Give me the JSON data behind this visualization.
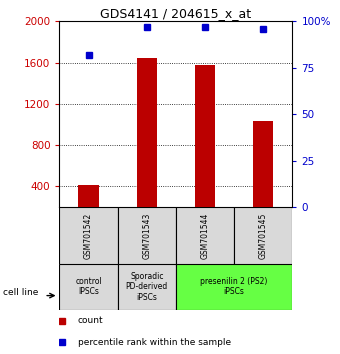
{
  "title": "GDS4141 / 204615_x_at",
  "samples": [
    "GSM701542",
    "GSM701543",
    "GSM701544",
    "GSM701545"
  ],
  "counts": [
    415,
    1645,
    1580,
    1030
  ],
  "percentiles": [
    82,
    97,
    97,
    96
  ],
  "ylim_left": [
    200,
    2000
  ],
  "ylim_right": [
    0,
    100
  ],
  "yticks_left": [
    400,
    800,
    1200,
    1600,
    2000
  ],
  "yticks_right": [
    0,
    25,
    50,
    75,
    100
  ],
  "bar_color": "#bb0000",
  "dot_color": "#0000cc",
  "bar_bottom": 200,
  "groups": [
    {
      "label": "control\nIPSCs",
      "cols": [
        0
      ],
      "color": "#d9d9d9"
    },
    {
      "label": "Sporadic\nPD-derived\niPSCs",
      "cols": [
        1
      ],
      "color": "#d9d9d9"
    },
    {
      "label": "presenilin 2 (PS2)\niPSCs",
      "cols": [
        2,
        3
      ],
      "color": "#66ff44"
    }
  ],
  "legend_count_color": "#bb0000",
  "legend_pct_color": "#0000cc",
  "cell_line_label": "cell line",
  "tick_label_color_left": "#cc0000",
  "tick_label_color_right": "#0000cc"
}
